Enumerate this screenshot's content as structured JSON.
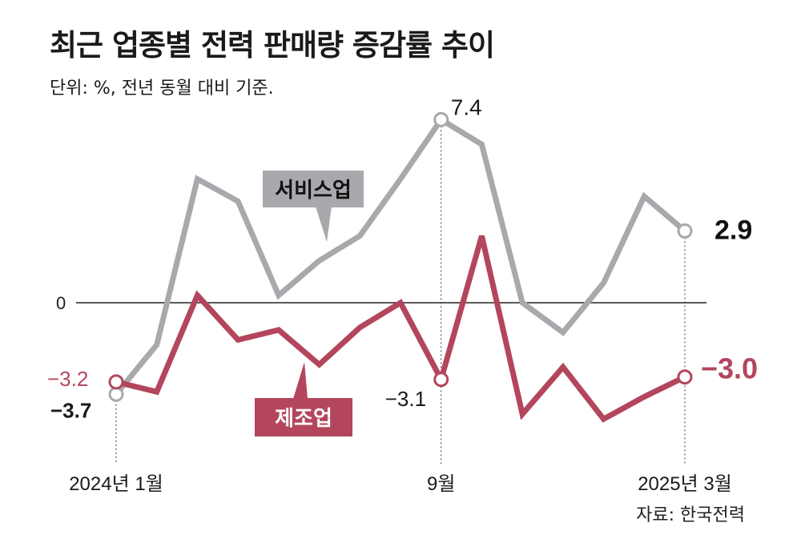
{
  "header": {
    "title": "최근 업종별 전력 판매량 증감률 추이",
    "subtitle": "단위: %, 전년 동월 대비 기준."
  },
  "source": "자료: 한국전력",
  "chart_data": {
    "type": "line",
    "title": "최근 업종별 전력 판매량 증감률 추이",
    "ylabel": "%",
    "ylim": [
      -7.2,
      9.2
    ],
    "x": [
      1,
      2,
      3,
      4,
      5,
      6,
      7,
      8,
      9,
      10,
      11,
      12,
      13,
      14,
      15
    ],
    "zero_tick_label": "0",
    "x_tick_labels": [
      {
        "x": 1,
        "label": "2024년 1월"
      },
      {
        "x": 9,
        "label": "9월"
      },
      {
        "x": 15,
        "label": "2025년 3월"
      }
    ],
    "series": [
      {
        "name": "서비스업",
        "color": "#a7a9ac",
        "badge_bg": "#a7a9ac",
        "values": [
          -3.7,
          -1.7,
          5.0,
          4.1,
          0.3,
          1.7,
          2.7,
          5.0,
          7.4,
          6.4,
          0.0,
          -1.2,
          0.8,
          4.3,
          2.9
        ],
        "labels": [
          {
            "x": 1,
            "text": "−3.7"
          },
          {
            "x": 9,
            "text": "7.4"
          },
          {
            "x": 15,
            "text": "2.9"
          }
        ]
      },
      {
        "name": "제조업",
        "color": "#b3465c",
        "badge_bg": "#b3465c",
        "values": [
          -3.2,
          -3.6,
          0.3,
          -1.5,
          -1.1,
          -2.5,
          -1.0,
          0.0,
          -3.1,
          2.7,
          -4.5,
          -2.6,
          -4.7,
          -3.8,
          -3.0
        ],
        "labels": [
          {
            "x": 1,
            "text": "−3.2"
          },
          {
            "x": 9,
            "text": "−3.1"
          },
          {
            "x": 15,
            "text": "−3.0"
          }
        ]
      }
    ]
  }
}
